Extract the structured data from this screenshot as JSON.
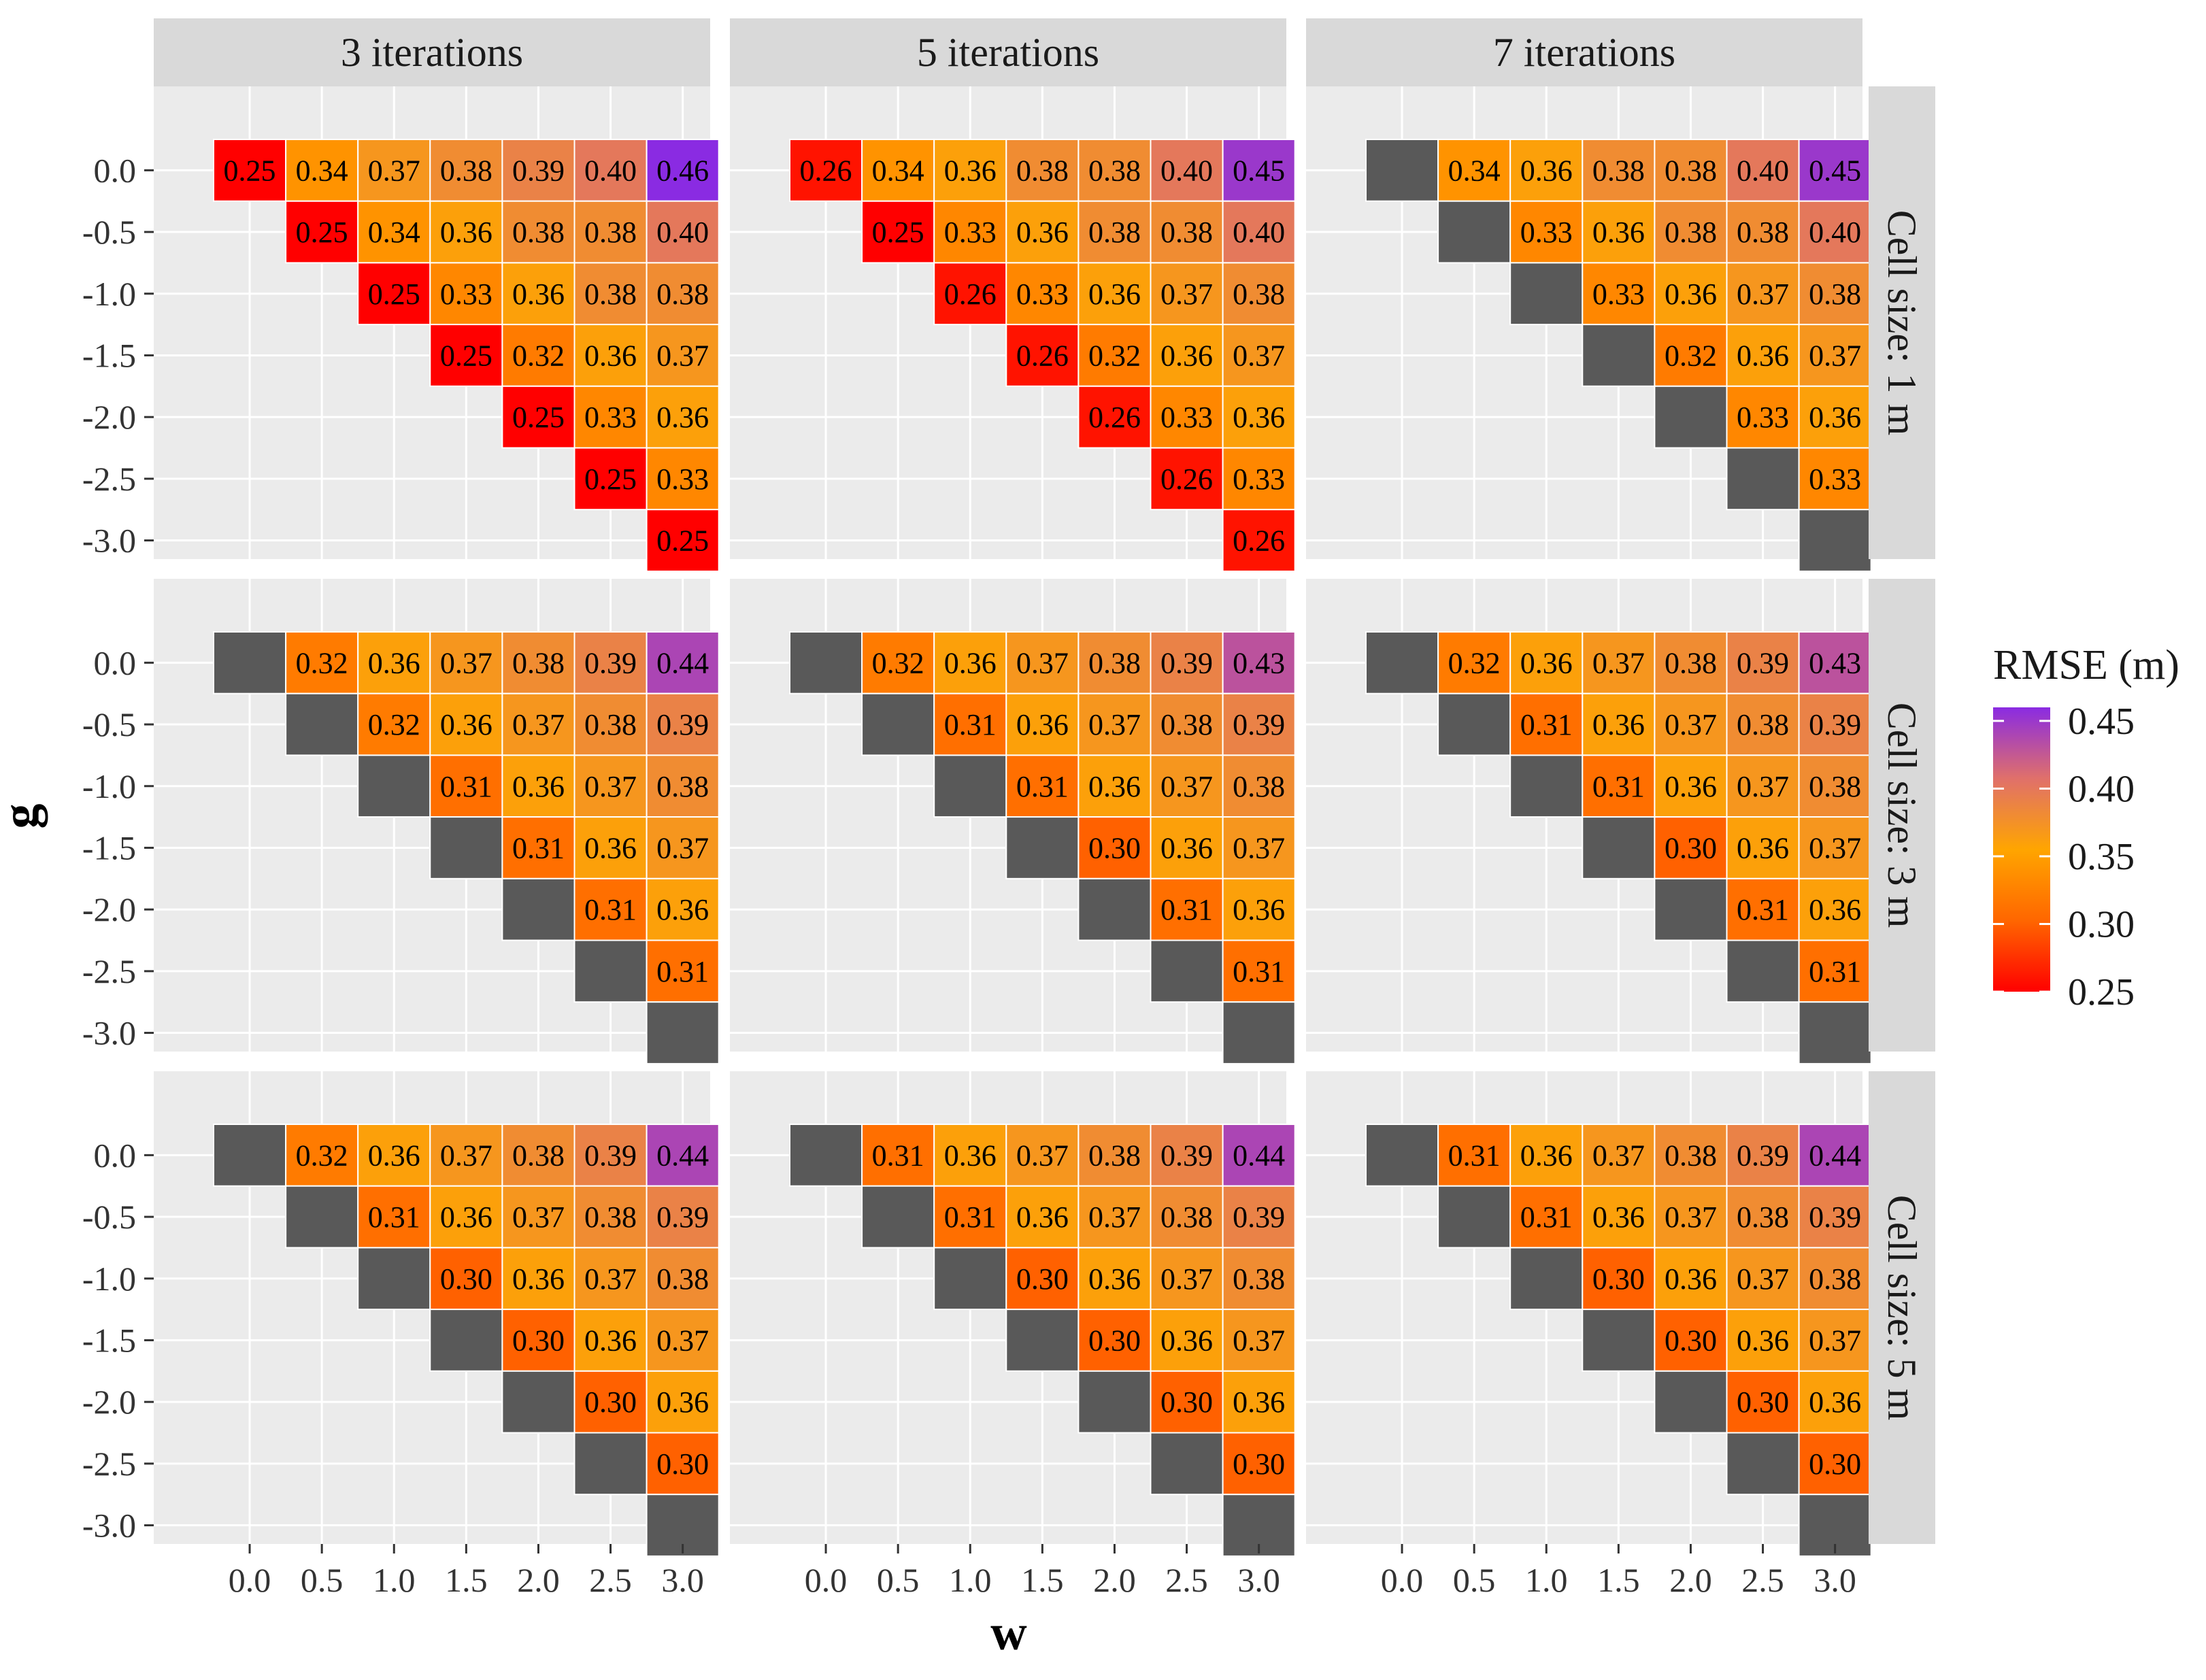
{
  "chart_data": {
    "type": "heatmap",
    "xlabel": "w",
    "ylabel": "g",
    "x_ticks": [
      "0.0",
      "0.5",
      "1.0",
      "1.5",
      "2.0",
      "2.5",
      "3.0"
    ],
    "y_ticks": [
      "0.0",
      "-0.5",
      "-1.0",
      "-1.5",
      "-2.0",
      "-2.5",
      "-3.0"
    ],
    "column_facets": [
      "3 iterations",
      "5 iterations",
      "7 iterations"
    ],
    "row_facets": [
      "Cell size: 1 m",
      "Cell size: 3 m",
      "Cell size: 5 m"
    ],
    "legend": {
      "title": "RMSE (m)",
      "range": [
        0.25,
        0.46
      ],
      "ticks": [
        "0.45",
        "0.40",
        "0.35",
        "0.30",
        "0.25"
      ],
      "tick_values": [
        0.45,
        0.4,
        0.35,
        0.3,
        0.25
      ],
      "colors": [
        "#ff0000",
        "#ff6600",
        "#ffa500",
        "#e0706a",
        "#8a2be2"
      ]
    },
    "na_color": "#595959",
    "panels": [
      [
        [
          "0.25",
          "0.34",
          "0.37",
          "0.38",
          "0.39",
          "0.40",
          "0.46"
        ],
        [
          null,
          "0.25",
          "0.34",
          "0.36",
          "0.38",
          "0.38",
          "0.40"
        ],
        [
          null,
          null,
          "0.25",
          "0.33",
          "0.36",
          "0.38",
          "0.38"
        ],
        [
          null,
          null,
          null,
          "0.25",
          "0.32",
          "0.36",
          "0.37"
        ],
        [
          null,
          null,
          null,
          null,
          "0.25",
          "0.33",
          "0.36"
        ],
        [
          null,
          null,
          null,
          null,
          null,
          "0.25",
          "0.33"
        ],
        [
          null,
          null,
          null,
          null,
          null,
          null,
          "0.25"
        ]
      ],
      [
        [
          "0.26",
          "0.34",
          "0.36",
          "0.38",
          "0.38",
          "0.40",
          "0.45"
        ],
        [
          null,
          "0.25",
          "0.33",
          "0.36",
          "0.38",
          "0.38",
          "0.40"
        ],
        [
          null,
          null,
          "0.26",
          "0.33",
          "0.36",
          "0.37",
          "0.38"
        ],
        [
          null,
          null,
          null,
          "0.26",
          "0.32",
          "0.36",
          "0.37"
        ],
        [
          null,
          null,
          null,
          null,
          "0.26",
          "0.33",
          "0.36"
        ],
        [
          null,
          null,
          null,
          null,
          null,
          "0.26",
          "0.33"
        ],
        [
          null,
          null,
          null,
          null,
          null,
          null,
          "0.26"
        ]
      ],
      [
        [
          "NA",
          "0.34",
          "0.36",
          "0.38",
          "0.38",
          "0.40",
          "0.45"
        ],
        [
          null,
          "NA",
          "0.33",
          "0.36",
          "0.38",
          "0.38",
          "0.40"
        ],
        [
          null,
          null,
          "NA",
          "0.33",
          "0.36",
          "0.37",
          "0.38"
        ],
        [
          null,
          null,
          null,
          "NA",
          "0.32",
          "0.36",
          "0.37"
        ],
        [
          null,
          null,
          null,
          null,
          "NA",
          "0.33",
          "0.36"
        ],
        [
          null,
          null,
          null,
          null,
          null,
          "NA",
          "0.33"
        ],
        [
          null,
          null,
          null,
          null,
          null,
          null,
          "NA"
        ]
      ],
      [
        [
          "NA",
          "0.32",
          "0.36",
          "0.37",
          "0.38",
          "0.39",
          "0.44"
        ],
        [
          null,
          "NA",
          "0.32",
          "0.36",
          "0.37",
          "0.38",
          "0.39"
        ],
        [
          null,
          null,
          "NA",
          "0.31",
          "0.36",
          "0.37",
          "0.38"
        ],
        [
          null,
          null,
          null,
          "NA",
          "0.31",
          "0.36",
          "0.37"
        ],
        [
          null,
          null,
          null,
          null,
          "NA",
          "0.31",
          "0.36"
        ],
        [
          null,
          null,
          null,
          null,
          null,
          "NA",
          "0.31"
        ],
        [
          null,
          null,
          null,
          null,
          null,
          null,
          "NA"
        ]
      ],
      [
        [
          "NA",
          "0.32",
          "0.36",
          "0.37",
          "0.38",
          "0.39",
          "0.43"
        ],
        [
          null,
          "NA",
          "0.31",
          "0.36",
          "0.37",
          "0.38",
          "0.39"
        ],
        [
          null,
          null,
          "NA",
          "0.31",
          "0.36",
          "0.37",
          "0.38"
        ],
        [
          null,
          null,
          null,
          "NA",
          "0.30",
          "0.36",
          "0.37"
        ],
        [
          null,
          null,
          null,
          null,
          "NA",
          "0.31",
          "0.36"
        ],
        [
          null,
          null,
          null,
          null,
          null,
          "NA",
          "0.31"
        ],
        [
          null,
          null,
          null,
          null,
          null,
          null,
          "NA"
        ]
      ],
      [
        [
          "NA",
          "0.32",
          "0.36",
          "0.37",
          "0.38",
          "0.39",
          "0.43"
        ],
        [
          null,
          "NA",
          "0.31",
          "0.36",
          "0.37",
          "0.38",
          "0.39"
        ],
        [
          null,
          null,
          "NA",
          "0.31",
          "0.36",
          "0.37",
          "0.38"
        ],
        [
          null,
          null,
          null,
          "NA",
          "0.30",
          "0.36",
          "0.37"
        ],
        [
          null,
          null,
          null,
          null,
          "NA",
          "0.31",
          "0.36"
        ],
        [
          null,
          null,
          null,
          null,
          null,
          "NA",
          "0.31"
        ],
        [
          null,
          null,
          null,
          null,
          null,
          null,
          "NA"
        ]
      ],
      [
        [
          "NA",
          "0.32",
          "0.36",
          "0.37",
          "0.38",
          "0.39",
          "0.44"
        ],
        [
          null,
          "NA",
          "0.31",
          "0.36",
          "0.37",
          "0.38",
          "0.39"
        ],
        [
          null,
          null,
          "NA",
          "0.30",
          "0.36",
          "0.37",
          "0.38"
        ],
        [
          null,
          null,
          null,
          "NA",
          "0.30",
          "0.36",
          "0.37"
        ],
        [
          null,
          null,
          null,
          null,
          "NA",
          "0.30",
          "0.36"
        ],
        [
          null,
          null,
          null,
          null,
          null,
          "NA",
          "0.30"
        ],
        [
          null,
          null,
          null,
          null,
          null,
          null,
          "NA"
        ]
      ],
      [
        [
          "NA",
          "0.31",
          "0.36",
          "0.37",
          "0.38",
          "0.39",
          "0.44"
        ],
        [
          null,
          "NA",
          "0.31",
          "0.36",
          "0.37",
          "0.38",
          "0.39"
        ],
        [
          null,
          null,
          "NA",
          "0.30",
          "0.36",
          "0.37",
          "0.38"
        ],
        [
          null,
          null,
          null,
          "NA",
          "0.30",
          "0.36",
          "0.37"
        ],
        [
          null,
          null,
          null,
          null,
          "NA",
          "0.30",
          "0.36"
        ],
        [
          null,
          null,
          null,
          null,
          null,
          "NA",
          "0.30"
        ],
        [
          null,
          null,
          null,
          null,
          null,
          null,
          "NA"
        ]
      ],
      [
        [
          "NA",
          "0.31",
          "0.36",
          "0.37",
          "0.38",
          "0.39",
          "0.44"
        ],
        [
          null,
          "NA",
          "0.31",
          "0.36",
          "0.37",
          "0.38",
          "0.39"
        ],
        [
          null,
          null,
          "NA",
          "0.30",
          "0.36",
          "0.37",
          "0.38"
        ],
        [
          null,
          null,
          null,
          "NA",
          "0.30",
          "0.36",
          "0.37"
        ],
        [
          null,
          null,
          null,
          null,
          "NA",
          "0.30",
          "0.36"
        ],
        [
          null,
          null,
          null,
          null,
          null,
          "NA",
          "0.30"
        ],
        [
          null,
          null,
          null,
          null,
          null,
          null,
          "NA"
        ]
      ]
    ]
  }
}
